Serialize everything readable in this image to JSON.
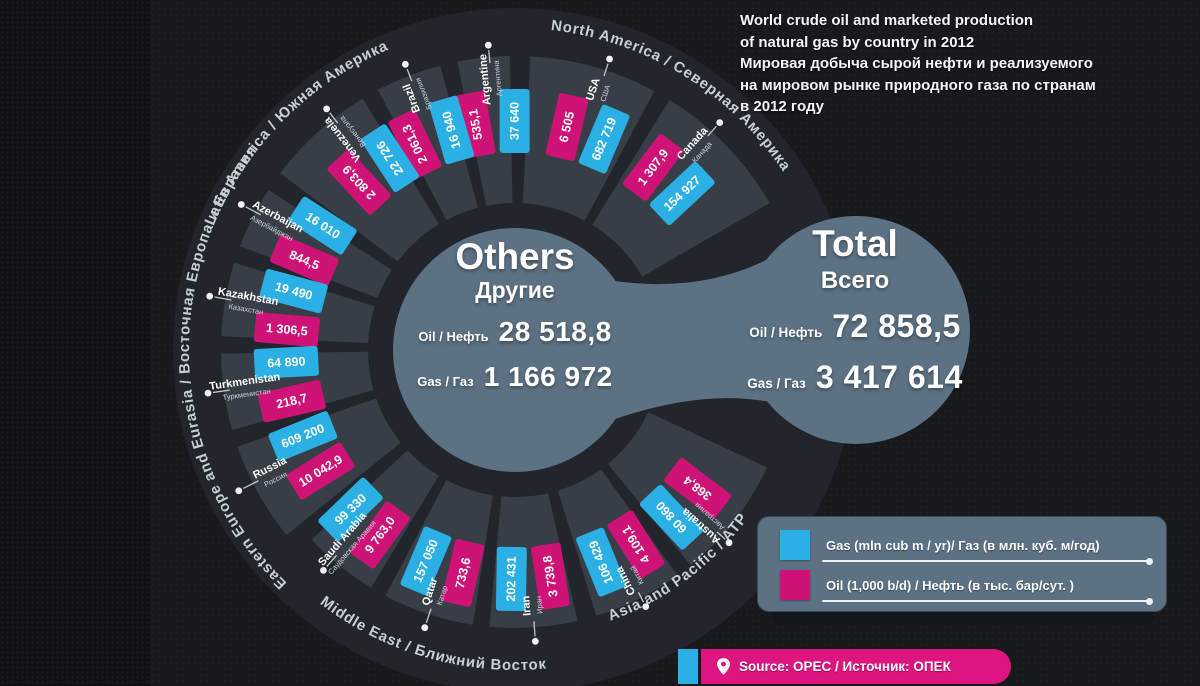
{
  "title": {
    "lines": [
      "World crude oil and marketed production",
      "of natural gas by country in 2012",
      "Мировая добыча сырой нефти и реализуемого",
      "на мировом рынке природного газа по странам",
      "в 2012 году"
    ]
  },
  "colors": {
    "gas": "#2bb0e5",
    "oil": "#cf1376",
    "bubble": "#5c7183",
    "ring": "#373e46",
    "halo": "#22262c",
    "background": "#17191d",
    "source_pink": "#dd1580",
    "text": "#ffffff"
  },
  "others": {
    "title": "Others",
    "subtitle": "Другие",
    "oil_label": "Oil / Нефть",
    "oil_value": "28 518,8",
    "gas_label": "Gas / Газ",
    "gas_value": "1 166 972"
  },
  "total": {
    "title": "Total",
    "subtitle": "Всего",
    "oil_label": "Oil / Нефть",
    "oil_value": "72 858,5",
    "gas_label": "Gas / Газ",
    "gas_value": "3 417 614"
  },
  "legend": {
    "gas_label": "Gas  (mln cub m / yr)/ Газ (в млн.  куб. м/год)",
    "oil_label": "Oil (1,000 b/d) / Нефть (в тыс. бар/сут. )"
  },
  "source": {
    "label": "Source: OPEC / Источник: ОПЕК"
  },
  "chart_data": {
    "type": "radial-bar",
    "title": "World crude oil and marketed production of natural gas by country in 2012",
    "units": {
      "gas": "mln cub m / yr",
      "oil": "1,000 b/d"
    },
    "legend": [
      "Gas  (mln cub m / yr)/ Газ (в млн.  куб. м/год)",
      "Oil (1,000 b/d) / Нефть (в тыс. бар/сут. )"
    ],
    "others": {
      "oil": "28 518,8",
      "gas": "1 166 972"
    },
    "total": {
      "oil": "72 858,5",
      "gas": "3 417 614"
    },
    "center": [
      515,
      350
    ],
    "halo_radius": 342,
    "others_circle": {
      "center": [
        515,
        350
      ],
      "radius": 122
    },
    "total_circle": {
      "center": [
        856,
        330
      ],
      "radius": 114
    },
    "ring_inner_radius": 147,
    "bars": {
      "inner_radius": 197,
      "outer_radius": 261,
      "width": 30,
      "angle_offset": 4.9
    },
    "regions": [
      {
        "name_en": "North America",
        "name_ru": "Северная Америка",
        "band": [
          30,
          87
        ],
        "ring_outer": 294,
        "label_arc": [
          84,
          16
        ],
        "label_radius": 322,
        "country_label_radius": 272,
        "dot_radius": 306,
        "countries": [
          {
            "name_en": "Canada",
            "name_ru": "Канада",
            "angle": 48,
            "oil": "1 307,9",
            "gas": "154 927"
          },
          {
            "name_en": "USA",
            "name_ru": "США",
            "angle": 72,
            "oil": "6 505",
            "gas": "682 719"
          }
        ]
      },
      {
        "name_en": "Latin America",
        "name_ru": "Южная Америка",
        "band": [
          91,
          143
        ],
        "ring_outer": 294,
        "label_arc": [
          158,
          88
        ],
        "label_radius": 326,
        "country_label_radius": 272,
        "dot_radius": 306,
        "countries": [
          {
            "name_en": "Argentine",
            "name_ru": "Аргентина",
            "angle": 95,
            "oil": "535,1",
            "gas": "37 640"
          },
          {
            "name_en": "Brazil",
            "name_ru": "Бразилия",
            "angle": 111,
            "oil": "2 061,3",
            "gas": "16 940"
          },
          {
            "name_en": "Venezuela",
            "name_ru": "Венесуэла",
            "angle": 128,
            "oil": "2 803,9",
            "gas": "22 726"
          }
        ]
      },
      {
        "name_en": "Eastern Europe and Eurasia",
        "name_ru": "Восточная Европа и Евразия",
        "band": [
          147,
          219
        ],
        "ring_outer": 294,
        "label_arc": [
          226,
          138
        ],
        "label_radius": 326,
        "country_label_radius": 272,
        "dot_radius": 310,
        "countries": [
          {
            "name_en": "Azerbaijan",
            "name_ru": "Азербайджан",
            "angle": 152,
            "oil": "844,5",
            "gas": "16 010"
          },
          {
            "name_en": "Kazakhstan",
            "name_ru": "Казахстан",
            "angle": 170,
            "oil": "1 306,5",
            "gas": "19 490"
          },
          {
            "name_en": "Turkmenistan",
            "name_ru": "Туркменистан",
            "angle": 188,
            "oil": "218,7",
            "gas": "64 890"
          },
          {
            "name_en": "Russia",
            "name_ru": "Россия",
            "angle": 207,
            "oil": "10 042,9",
            "gas": "609 200"
          }
        ]
      },
      {
        "name_en": "Middle East",
        "name_ru": "Ближний Восток",
        "band": [
          223,
          283
        ],
        "ring_outer": 278,
        "label_arc": [
          232,
          288
        ],
        "label_radius": 320,
        "country_label_radius": 256,
        "dot_radius": 292,
        "countries": [
          {
            "name_en": "Saudi Arabia",
            "name_ru": "Саудовская Аравия",
            "angle": 229,
            "oil": "9 763,0",
            "gas": "99 330"
          },
          {
            "name_en": "Qatar",
            "name_ru": "Катар",
            "angle": 252,
            "oil": "733,6",
            "gas": "157 050"
          },
          {
            "name_en": "Iran",
            "name_ru": "Иран",
            "angle": 274,
            "oil": "3 739,8",
            "gas": "202 431"
          }
        ]
      },
      {
        "name_en": "Asia and Pacific",
        "name_ru": "АТР",
        "band": [
          287,
          335
        ],
        "ring_outer": 278,
        "label_arc": [
          289,
          332
        ],
        "label_radius": 287,
        "country_label_radius": 256,
        "dot_radius": 288,
        "countries": [
          {
            "name_en": "China",
            "name_ru": "Китай",
            "angle": 297,
            "oil": "4 109,1",
            "gas": "106 429"
          },
          {
            "name_en": "Australia",
            "name_ru": "Австралия",
            "angle": 318,
            "oil": "368,4",
            "gas": "60 860"
          }
        ]
      }
    ]
  }
}
